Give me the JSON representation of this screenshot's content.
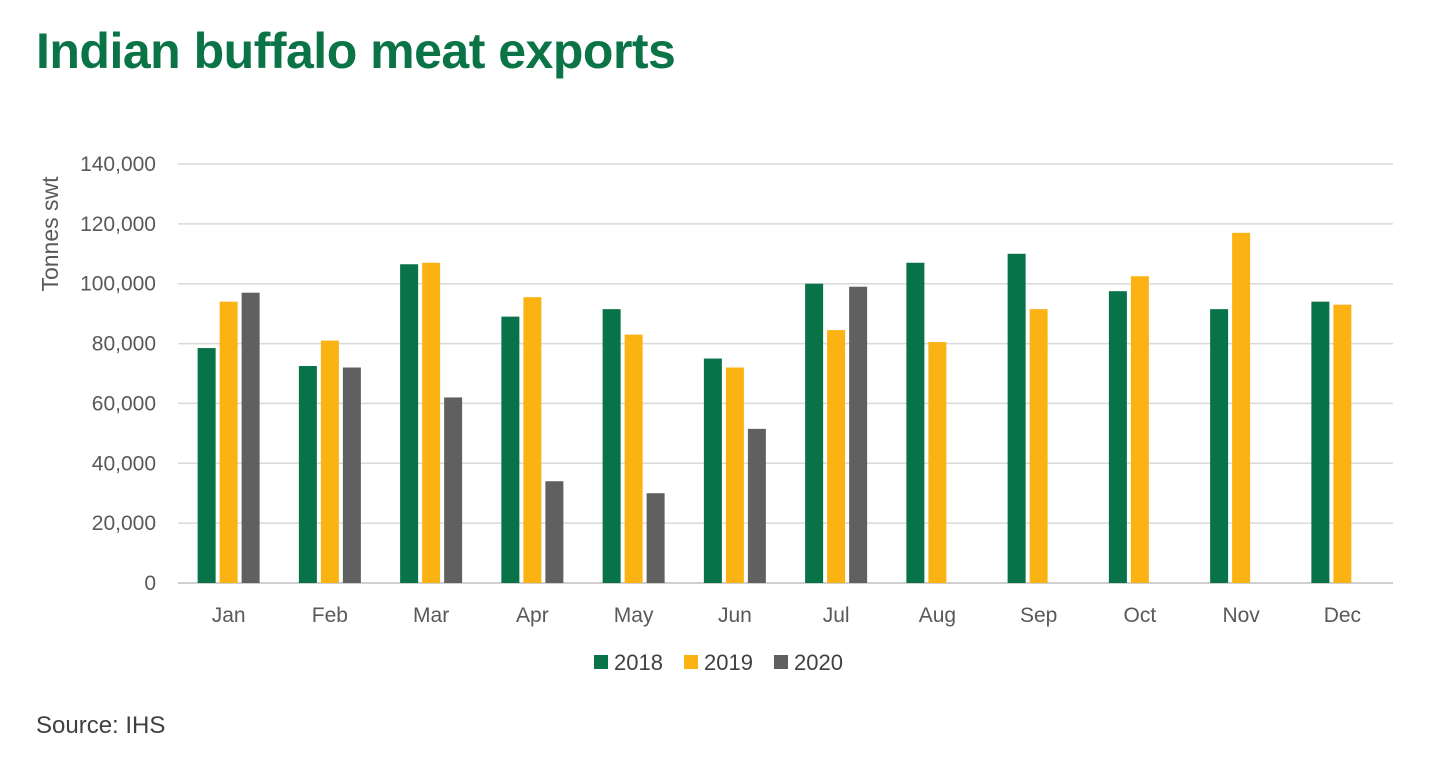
{
  "title": "Indian buffalo meat exports",
  "source": "Source: IHS",
  "chart_data": {
    "type": "bar",
    "ylabel": "Tonnes swt",
    "xlabel": "",
    "ylim": [
      0,
      140000
    ],
    "y_ticks": [
      "0",
      "20,000",
      "40,000",
      "60,000",
      "80,000",
      "100,000",
      "120,000",
      "140,000"
    ],
    "grid": true,
    "legend_position": "bottom",
    "categories": [
      "Jan",
      "Feb",
      "Mar",
      "Apr",
      "May",
      "Jun",
      "Jul",
      "Aug",
      "Sep",
      "Oct",
      "Nov",
      "Dec"
    ],
    "series": [
      {
        "name": "2018",
        "color": "#087248",
        "values": [
          78500,
          72500,
          106500,
          89000,
          91500,
          75000,
          100000,
          107000,
          110000,
          97500,
          91500,
          94000
        ]
      },
      {
        "name": "2019",
        "color": "#fbb313",
        "values": [
          94000,
          81000,
          107000,
          95500,
          83000,
          72000,
          84500,
          80500,
          91500,
          102500,
          117000,
          93000
        ]
      },
      {
        "name": "2020",
        "color": "#606060",
        "values": [
          97000,
          72000,
          62000,
          34000,
          30000,
          51500,
          99000,
          null,
          null,
          null,
          null,
          null
        ]
      }
    ]
  }
}
